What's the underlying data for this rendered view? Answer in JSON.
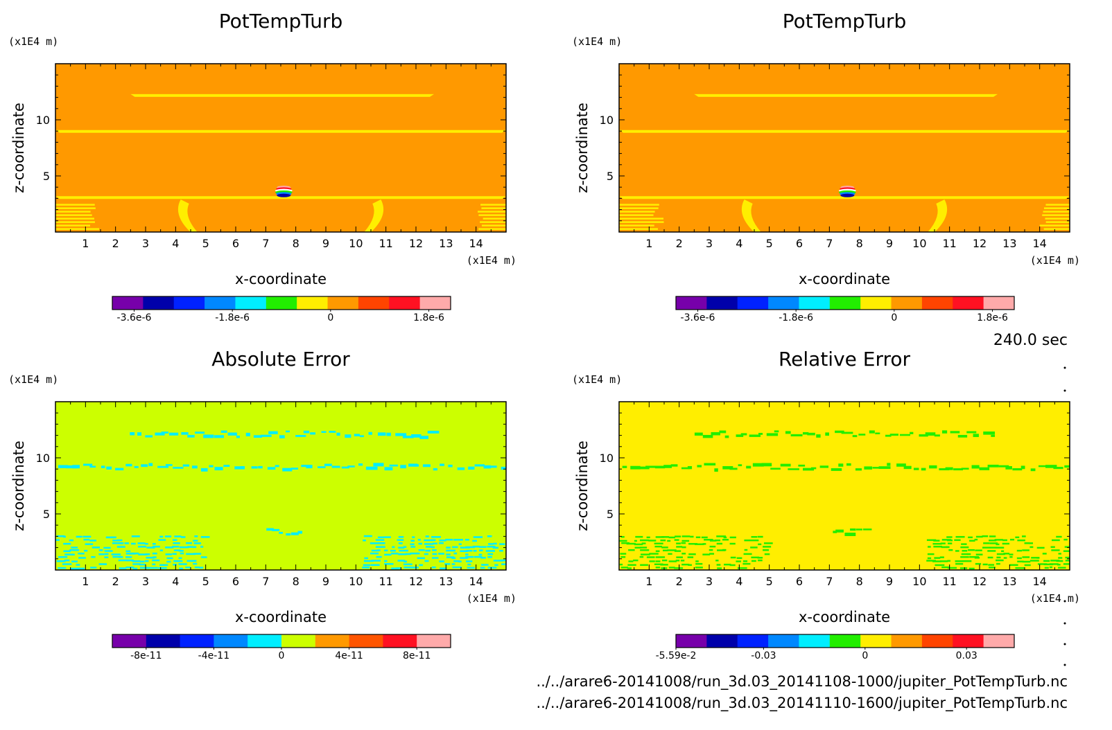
{
  "time_label": "240.0 sec",
  "files": [
    "../../arare6-20141008/run_3d.03_20141108-1000/jupiter_PotTempTurb.nc",
    "../../arare6-20141008/run_3d.03_20141110-1600/jupiter_PotTempTurb.nc"
  ],
  "chart_data": [
    {
      "type": "heatmap",
      "title": "PotTempTurb",
      "xlabel": "x-coordinate",
      "ylabel": "z-coordinate",
      "x_unit": "(x1E4 m)",
      "y_unit": "(x1E4 m)",
      "xlim": [
        0,
        15
      ],
      "ylim": [
        0,
        15
      ],
      "x_ticks": [
        "1",
        "2",
        "3",
        "4",
        "5",
        "6",
        "7",
        "8",
        "9",
        "10",
        "11",
        "12",
        "13",
        "14"
      ],
      "y_ticks": [
        "5",
        "10"
      ],
      "background_color": "#ff9900",
      "features": [
        {
          "shape": "band",
          "color": "#ffee00",
          "z": 12.2,
          "x_from": 2.5,
          "x_to": 12.6
        },
        {
          "shape": "band",
          "color": "#ffee00",
          "z": 9.0,
          "x_from": 0,
          "x_to": 15
        },
        {
          "shape": "band",
          "color": "#ffee00",
          "z": 3.1,
          "x_from": 0,
          "x_to": 15
        },
        {
          "shape": "stripes",
          "color": "#ffee00",
          "x_from": 0,
          "x_to": 1.5
        },
        {
          "shape": "stripes",
          "color": "#ffee00",
          "x_from": 14.0,
          "x_to": 15
        },
        {
          "shape": "plume",
          "color": "#ffee00",
          "x": 4.4
        },
        {
          "shape": "plume",
          "color": "#ffee00",
          "x": 10.6
        },
        {
          "shape": "bubble",
          "x": 7.6,
          "z": 3.6
        }
      ],
      "colorbar": {
        "colors": [
          "#7700aa",
          "#0000aa",
          "#0022ff",
          "#0088ff",
          "#00eeff",
          "#22ee00",
          "#ffee00",
          "#ff9900",
          "#ff4400",
          "#ff1122",
          "#ffaaaa"
        ],
        "labels": [
          "-3.6e-6",
          "-1.8e-6",
          "0",
          "1.8e-6"
        ],
        "label_positions": [
          -3.6e-06,
          -1.8e-06,
          0,
          1.8e-06
        ],
        "range": [
          -4e-06,
          2.2e-06
        ]
      }
    },
    {
      "type": "heatmap",
      "title": "PotTempTurb",
      "xlabel": "x-coordinate",
      "ylabel": "z-coordinate",
      "x_unit": "(x1E4 m)",
      "y_unit": "(x1E4 m)",
      "xlim": [
        0,
        15
      ],
      "ylim": [
        0,
        15
      ],
      "x_ticks": [
        "1",
        "2",
        "3",
        "4",
        "5",
        "6",
        "7",
        "8",
        "9",
        "10",
        "11",
        "12",
        "13",
        "14"
      ],
      "y_ticks": [
        "5",
        "10"
      ],
      "background_color": "#ff9900",
      "features": [
        {
          "shape": "band",
          "color": "#ffee00",
          "z": 12.2,
          "x_from": 2.5,
          "x_to": 12.6
        },
        {
          "shape": "band",
          "color": "#ffee00",
          "z": 9.0,
          "x_from": 0,
          "x_to": 15
        },
        {
          "shape": "band",
          "color": "#ffee00",
          "z": 3.1,
          "x_from": 0,
          "x_to": 15
        },
        {
          "shape": "stripes",
          "color": "#ffee00",
          "x_from": 0,
          "x_to": 1.5
        },
        {
          "shape": "stripes",
          "color": "#ffee00",
          "x_from": 14.0,
          "x_to": 15
        },
        {
          "shape": "plume",
          "color": "#ffee00",
          "x": 4.4
        },
        {
          "shape": "plume",
          "color": "#ffee00",
          "x": 10.6
        },
        {
          "shape": "bubble",
          "x": 7.6,
          "z": 3.6
        }
      ],
      "colorbar": {
        "colors": [
          "#7700aa",
          "#0000aa",
          "#0022ff",
          "#0088ff",
          "#00eeff",
          "#22ee00",
          "#ffee00",
          "#ff9900",
          "#ff4400",
          "#ff1122",
          "#ffaaaa"
        ],
        "labels": [
          "-3.6e-6",
          "-1.8e-6",
          "0",
          "1.8e-6"
        ],
        "label_positions": [
          -3.6e-06,
          -1.8e-06,
          0,
          1.8e-06
        ],
        "range": [
          -4e-06,
          2.2e-06
        ]
      }
    },
    {
      "type": "heatmap",
      "title": "Absolute Error",
      "xlabel": "x-coordinate",
      "ylabel": "z-coordinate",
      "x_unit": "(x1E4 m)",
      "y_unit": "(x1E4 m)",
      "xlim": [
        0,
        15
      ],
      "ylim": [
        0,
        15
      ],
      "x_ticks": [
        "1",
        "2",
        "3",
        "4",
        "5",
        "6",
        "7",
        "8",
        "9",
        "10",
        "11",
        "12",
        "13",
        "14"
      ],
      "y_ticks": [
        "5",
        "10"
      ],
      "background_color": "#ccff00",
      "features": [
        {
          "shape": "noise",
          "color": "#00eeff",
          "z": 12.2,
          "x_from": 2.4,
          "x_to": 12.6
        },
        {
          "shape": "noise",
          "color": "#00eeff",
          "z": 9.3,
          "x_from": 0,
          "x_to": 15
        },
        {
          "shape": "block",
          "color": "#00eeff",
          "x_from": 0,
          "x_to": 5.0,
          "z_from": 0,
          "z_to": 3.1
        },
        {
          "shape": "block",
          "color": "#00eeff",
          "x_from": 10.2,
          "x_to": 15,
          "z_from": 0,
          "z_to": 3.1
        },
        {
          "shape": "noise",
          "color": "#00eeff",
          "z": 3.5,
          "x_from": 7.0,
          "x_to": 8.2
        }
      ],
      "colorbar": {
        "colors": [
          "#7700aa",
          "#0000aa",
          "#0022ff",
          "#0088ff",
          "#00eeff",
          "#ccff00",
          "#ff9900",
          "#ff5500",
          "#ff1122",
          "#ffaaaa"
        ],
        "labels": [
          "-8e-11",
          "-4e-11",
          "0",
          "4e-11",
          "8e-11"
        ],
        "label_positions": [
          -8e-11,
          -4e-11,
          0,
          4e-11,
          8e-11
        ],
        "range": [
          -1e-10,
          1e-10
        ]
      }
    },
    {
      "type": "heatmap",
      "title": "Relative Error",
      "xlabel": "x-coordinate",
      "ylabel": "z-coordinate",
      "x_unit": "(x1E4 m)",
      "y_unit": "(x1E4 m)",
      "xlim": [
        0,
        15
      ],
      "ylim": [
        0,
        15
      ],
      "x_ticks": [
        "1",
        "2",
        "3",
        "4",
        "5",
        "6",
        "7",
        "8",
        "9",
        "10",
        "11",
        "12",
        "13",
        "14"
      ],
      "y_ticks": [
        "5",
        "10"
      ],
      "background_color": "#ffee00",
      "features": [
        {
          "shape": "noise",
          "color": "#22ee00",
          "z": 12.2,
          "x_from": 2.4,
          "x_to": 12.6
        },
        {
          "shape": "noise",
          "color": "#22ee00",
          "z": 9.3,
          "x_from": 0,
          "x_to": 15
        },
        {
          "shape": "block",
          "color": "#22ee00",
          "x_from": 0,
          "x_to": 5.0,
          "z_from": 0,
          "z_to": 3.1
        },
        {
          "shape": "block",
          "color": "#22ee00",
          "x_from": 10.2,
          "x_to": 15,
          "z_from": 0,
          "z_to": 3.1
        },
        {
          "shape": "noise",
          "color": "#22ee00",
          "z": 3.5,
          "x_from": 7.0,
          "x_to": 8.2
        }
      ],
      "colorbar": {
        "colors": [
          "#7700aa",
          "#0000aa",
          "#0022ff",
          "#0088ff",
          "#00eeff",
          "#22ee00",
          "#ffee00",
          "#ff9900",
          "#ff4400",
          "#ff1122",
          "#ffaaaa"
        ],
        "labels": [
          "-5.59e-2",
          "-0.03",
          "0",
          "0.03"
        ],
        "label_positions": [
          -0.0559,
          -0.03,
          0,
          0.03
        ],
        "range": [
          -0.0559,
          0.0441
        ]
      }
    }
  ]
}
